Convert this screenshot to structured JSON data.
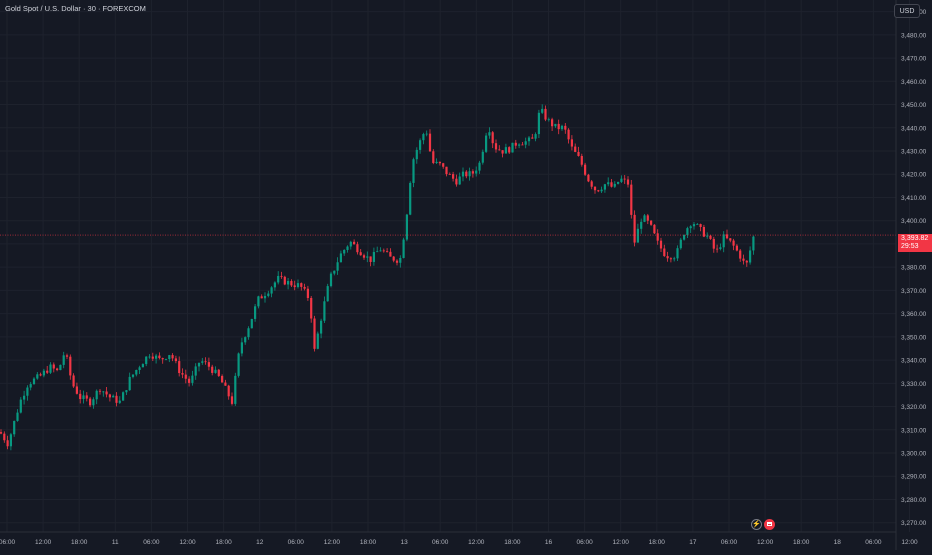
{
  "header": {
    "symbol_title": "Gold Spot / U.S. Dollar · 30 · FOREXCOM"
  },
  "currency_button": {
    "label": "USD"
  },
  "last_price": {
    "price_label": "3,393.82",
    "countdown": "29:53"
  },
  "colors": {
    "background": "#151924",
    "grid": "#1e222d",
    "up": "#089981",
    "down": "#f23645",
    "axis_text": "#b2b5be"
  },
  "icons": [
    "lightning-icon",
    "calendar-icon"
  ],
  "chart_data": {
    "type": "candlestick",
    "title": "Gold Spot / U.S. Dollar · 30 · FOREXCOM",
    "ylim": [
      3266,
      3495
    ],
    "y_ticks": [
      "3,270.00",
      "3,280.00",
      "3,290.00",
      "3,300.00",
      "3,310.00",
      "3,320.00",
      "3,330.00",
      "3,340.00",
      "3,350.00",
      "3,360.00",
      "3,370.00",
      "3,380.00",
      "3,390.00",
      "3,400.00",
      "3,410.00",
      "3,420.00",
      "3,430.00",
      "3,440.00",
      "3,450.00",
      "3,460.00",
      "3,470.00",
      "3,480.00",
      "3,490.00"
    ],
    "x_ticks": [
      "06:00",
      "12:00",
      "18:00",
      "11",
      "06:00",
      "12:00",
      "18:00",
      "12",
      "06:00",
      "12:00",
      "18:00",
      "13",
      "06:00",
      "12:00",
      "18:00",
      "16",
      "06:00",
      "12:00",
      "18:00",
      "17",
      "06:00",
      "12:00",
      "18:00",
      "18",
      "06:00",
      "12:00"
    ],
    "last_price": 3393.82,
    "grid": true,
    "anchors": [
      [
        0,
        3309
      ],
      [
        8,
        3304
      ],
      [
        20,
        3322
      ],
      [
        28,
        3330
      ],
      [
        40,
        3333
      ],
      [
        50,
        3337
      ],
      [
        58,
        3335
      ],
      [
        65,
        3344
      ],
      [
        72,
        3330
      ],
      [
        80,
        3324
      ],
      [
        90,
        3322
      ],
      [
        100,
        3328
      ],
      [
        110,
        3324
      ],
      [
        120,
        3322
      ],
      [
        130,
        3332
      ],
      [
        140,
        3338
      ],
      [
        150,
        3343
      ],
      [
        160,
        3340
      ],
      [
        170,
        3343
      ],
      [
        180,
        3335
      ],
      [
        190,
        3330
      ],
      [
        200,
        3340
      ],
      [
        210,
        3337
      ],
      [
        220,
        3332
      ],
      [
        232,
        3322
      ],
      [
        240,
        3346
      ],
      [
        250,
        3356
      ],
      [
        258,
        3366
      ],
      [
        268,
        3370
      ],
      [
        278,
        3375
      ],
      [
        290,
        3373
      ],
      [
        300,
        3372
      ],
      [
        310,
        3366
      ],
      [
        314,
        3343
      ],
      [
        322,
        3360
      ],
      [
        330,
        3375
      ],
      [
        340,
        3385
      ],
      [
        350,
        3391
      ],
      [
        360,
        3387
      ],
      [
        370,
        3383
      ],
      [
        380,
        3388
      ],
      [
        390,
        3384
      ],
      [
        400,
        3383
      ],
      [
        406,
        3400
      ],
      [
        412,
        3425
      ],
      [
        418,
        3432
      ],
      [
        426,
        3440
      ],
      [
        432,
        3425
      ],
      [
        440,
        3424
      ],
      [
        448,
        3420
      ],
      [
        456,
        3417
      ],
      [
        464,
        3420
      ],
      [
        472,
        3420
      ],
      [
        480,
        3425
      ],
      [
        488,
        3442
      ],
      [
        494,
        3432
      ],
      [
        502,
        3430
      ],
      [
        510,
        3431
      ],
      [
        518,
        3434
      ],
      [
        526,
        3434
      ],
      [
        534,
        3435
      ],
      [
        540,
        3448
      ],
      [
        548,
        3443
      ],
      [
        556,
        3440
      ],
      [
        564,
        3440
      ],
      [
        572,
        3431
      ],
      [
        580,
        3426
      ],
      [
        588,
        3418
      ],
      [
        596,
        3413
      ],
      [
        606,
        3416
      ],
      [
        614,
        3414
      ],
      [
        620,
        3418
      ],
      [
        628,
        3416
      ],
      [
        634,
        3390
      ],
      [
        642,
        3402
      ],
      [
        650,
        3398
      ],
      [
        658,
        3390
      ],
      [
        666,
        3385
      ],
      [
        676,
        3385
      ],
      [
        684,
        3395
      ],
      [
        692,
        3400
      ],
      [
        700,
        3396
      ],
      [
        708,
        3393
      ],
      [
        716,
        3386
      ],
      [
        724,
        3393
      ],
      [
        732,
        3390
      ],
      [
        740,
        3385
      ],
      [
        746,
        3380
      ],
      [
        754,
        3394
      ]
    ]
  }
}
